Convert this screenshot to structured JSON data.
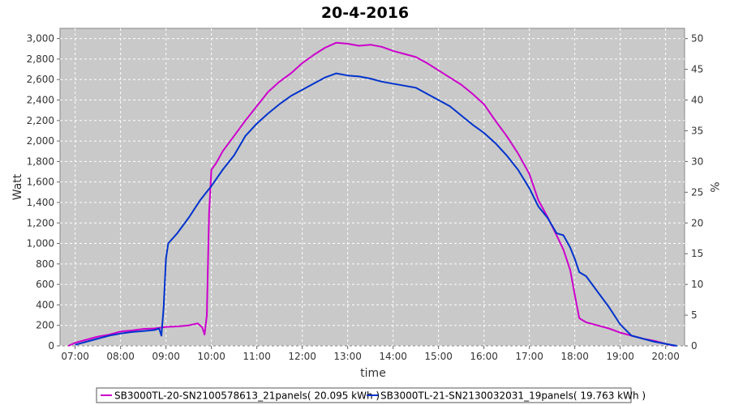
{
  "chart_data": {
    "type": "line",
    "title": "20-4-2016",
    "xlabel": "time",
    "ylabel": "Watt",
    "y2label": "%",
    "xlim": [
      6.667,
      20.417
    ],
    "ylim": [
      0,
      3100
    ],
    "y2lim": [
      0,
      51.667
    ],
    "x_ticks": [
      "07:00",
      "08:00",
      "09:00",
      "10:00",
      "11:00",
      "12:00",
      "13:00",
      "14:00",
      "15:00",
      "16:00",
      "17:00",
      "18:00",
      "19:00",
      "20:00"
    ],
    "y_ticks": [
      "0",
      "200",
      "400",
      "600",
      "800",
      "1,000",
      "1,200",
      "1,400",
      "1,600",
      "1,800",
      "2,000",
      "2,200",
      "2,400",
      "2,600",
      "2,800",
      "3,000"
    ],
    "y2_ticks": [
      "0",
      "5",
      "10",
      "15",
      "20",
      "25",
      "30",
      "35",
      "40",
      "45",
      "50"
    ],
    "grid": true,
    "legend_position": "bottom",
    "series": [
      {
        "name": "SB3000TL-20-SN2100578613_21panels( 20.095 kWh )",
        "color": "#cc00cc",
        "points": [
          [
            6.85,
            0
          ],
          [
            7.0,
            30
          ],
          [
            7.25,
            60
          ],
          [
            7.5,
            90
          ],
          [
            7.75,
            110
          ],
          [
            8.0,
            140
          ],
          [
            8.25,
            150
          ],
          [
            8.5,
            165
          ],
          [
            8.75,
            170
          ],
          [
            9.0,
            185
          ],
          [
            9.25,
            190
          ],
          [
            9.5,
            200
          ],
          [
            9.7,
            220
          ],
          [
            9.8,
            180
          ],
          [
            9.85,
            110
          ],
          [
            9.9,
            300
          ],
          [
            9.95,
            1300
          ],
          [
            10.0,
            1720
          ],
          [
            10.1,
            1780
          ],
          [
            10.25,
            1900
          ],
          [
            10.5,
            2050
          ],
          [
            10.75,
            2200
          ],
          [
            11.0,
            2340
          ],
          [
            11.25,
            2480
          ],
          [
            11.5,
            2580
          ],
          [
            11.75,
            2660
          ],
          [
            12.0,
            2760
          ],
          [
            12.25,
            2840
          ],
          [
            12.5,
            2910
          ],
          [
            12.75,
            2960
          ],
          [
            13.0,
            2950
          ],
          [
            13.25,
            2930
          ],
          [
            13.5,
            2940
          ],
          [
            13.75,
            2920
          ],
          [
            14.0,
            2880
          ],
          [
            14.25,
            2850
          ],
          [
            14.5,
            2820
          ],
          [
            14.75,
            2760
          ],
          [
            15.0,
            2690
          ],
          [
            15.25,
            2620
          ],
          [
            15.5,
            2550
          ],
          [
            15.75,
            2460
          ],
          [
            16.0,
            2360
          ],
          [
            16.25,
            2200
          ],
          [
            16.5,
            2050
          ],
          [
            16.75,
            1880
          ],
          [
            17.0,
            1680
          ],
          [
            17.2,
            1420
          ],
          [
            17.4,
            1260
          ],
          [
            17.6,
            1080
          ],
          [
            17.75,
            940
          ],
          [
            17.9,
            740
          ],
          [
            18.0,
            500
          ],
          [
            18.1,
            270
          ],
          [
            18.25,
            230
          ],
          [
            18.5,
            200
          ],
          [
            18.75,
            170
          ],
          [
            19.0,
            130
          ],
          [
            19.25,
            100
          ],
          [
            19.5,
            70
          ],
          [
            19.75,
            50
          ],
          [
            20.0,
            20
          ],
          [
            20.2,
            0
          ]
        ]
      },
      {
        "name": "SB3000TL-21-SN2130032031_19panels( 19.763 kWh )",
        "color": "#0033cc",
        "points": [
          [
            7.0,
            10
          ],
          [
            7.25,
            40
          ],
          [
            7.5,
            70
          ],
          [
            7.75,
            100
          ],
          [
            8.0,
            120
          ],
          [
            8.25,
            135
          ],
          [
            8.5,
            145
          ],
          [
            8.75,
            155
          ],
          [
            8.85,
            170
          ],
          [
            8.9,
            100
          ],
          [
            8.95,
            380
          ],
          [
            9.0,
            850
          ],
          [
            9.05,
            1000
          ],
          [
            9.25,
            1100
          ],
          [
            9.5,
            1250
          ],
          [
            9.75,
            1420
          ],
          [
            10.0,
            1560
          ],
          [
            10.25,
            1720
          ],
          [
            10.5,
            1860
          ],
          [
            10.75,
            2050
          ],
          [
            11.0,
            2170
          ],
          [
            11.25,
            2270
          ],
          [
            11.5,
            2360
          ],
          [
            11.75,
            2440
          ],
          [
            12.0,
            2500
          ],
          [
            12.25,
            2560
          ],
          [
            12.5,
            2620
          ],
          [
            12.75,
            2660
          ],
          [
            13.0,
            2640
          ],
          [
            13.25,
            2630
          ],
          [
            13.5,
            2610
          ],
          [
            13.75,
            2580
          ],
          [
            14.0,
            2560
          ],
          [
            14.25,
            2540
          ],
          [
            14.5,
            2520
          ],
          [
            14.75,
            2460
          ],
          [
            15.0,
            2400
          ],
          [
            15.25,
            2340
          ],
          [
            15.5,
            2250
          ],
          [
            15.75,
            2160
          ],
          [
            16.0,
            2080
          ],
          [
            16.25,
            1980
          ],
          [
            16.5,
            1860
          ],
          [
            16.75,
            1720
          ],
          [
            17.0,
            1540
          ],
          [
            17.2,
            1360
          ],
          [
            17.4,
            1250
          ],
          [
            17.6,
            1100
          ],
          [
            17.75,
            1080
          ],
          [
            17.9,
            960
          ],
          [
            18.0,
            850
          ],
          [
            18.1,
            720
          ],
          [
            18.25,
            680
          ],
          [
            18.5,
            530
          ],
          [
            18.75,
            380
          ],
          [
            19.0,
            210
          ],
          [
            19.25,
            100
          ],
          [
            19.5,
            70
          ],
          [
            19.75,
            40
          ],
          [
            20.0,
            20
          ],
          [
            20.25,
            0
          ]
        ]
      }
    ]
  }
}
